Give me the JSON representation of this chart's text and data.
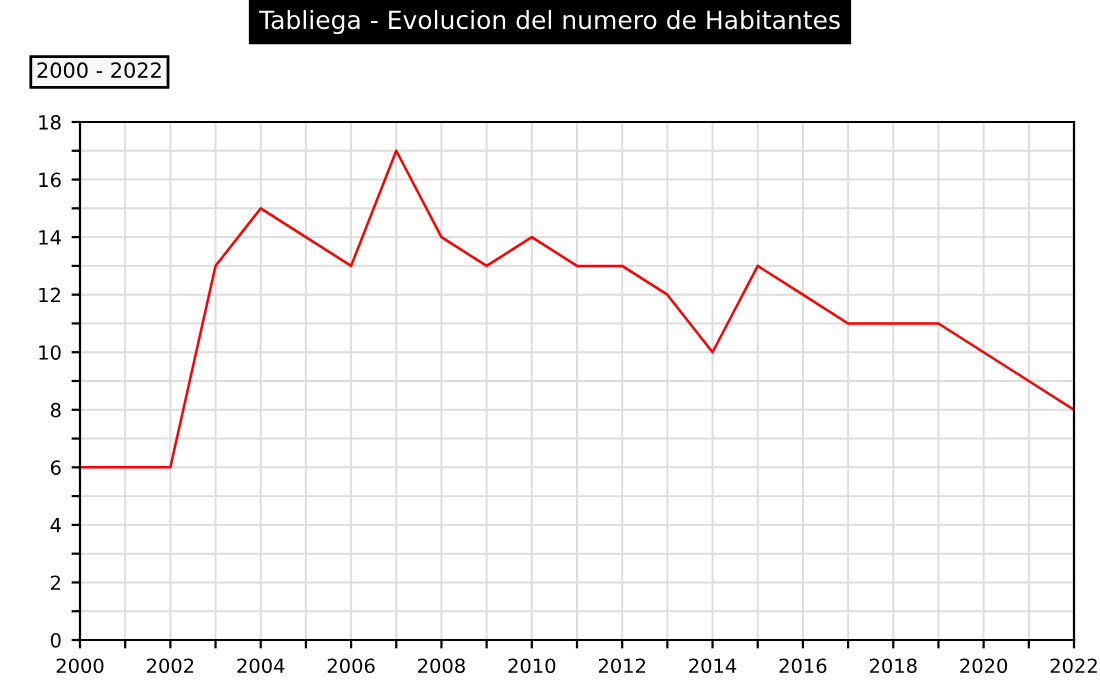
{
  "chart_data": {
    "type": "line",
    "title": "Tabliega - Evolucion del numero de Habitantes",
    "annotations": [
      "2000 - 2022"
    ],
    "x": [
      2000,
      2001,
      2002,
      2003,
      2004,
      2005,
      2006,
      2007,
      2008,
      2009,
      2010,
      2011,
      2012,
      2013,
      2014,
      2015,
      2016,
      2017,
      2018,
      2019,
      2020,
      2021,
      2022
    ],
    "series": [
      {
        "color": "#ff0000",
        "values": [
          6,
          6,
          6,
          13,
          15,
          14,
          13,
          17,
          14,
          13,
          14,
          13,
          13,
          12,
          10,
          13,
          12,
          11,
          11,
          11,
          10,
          9,
          8
        ]
      }
    ],
    "xlim": [
      2000,
      2022
    ],
    "xticks": [
      2000,
      {
        "value": 2001,
        "label": null
      },
      2002,
      {
        "value": 2003,
        "label": null
      },
      2004,
      {
        "value": 2005,
        "label": null
      },
      2006,
      {
        "value": 2007,
        "label": null
      },
      2008,
      {
        "value": 2009,
        "label": null
      },
      2010,
      {
        "value": 2011,
        "label": null
      },
      2012,
      {
        "value": 2013,
        "label": null
      },
      2014,
      {
        "value": 2015,
        "label": null
      },
      2016,
      {
        "value": 2017,
        "label": null
      },
      2018,
      {
        "value": 2019,
        "label": null
      },
      2020,
      {
        "value": 2021,
        "label": null
      },
      2022
    ],
    "ylim": [
      0,
      18
    ],
    "yticks": [
      0,
      {
        "value": 1,
        "label": null
      },
      2,
      {
        "value": 3,
        "label": null
      },
      4,
      {
        "value": 5,
        "label": null
      },
      6,
      {
        "value": 7,
        "label": null
      },
      8,
      {
        "value": 9,
        "label": null
      },
      10,
      {
        "value": 11,
        "label": null
      },
      12,
      {
        "value": 13,
        "label": null
      },
      14,
      {
        "value": 15,
        "label": null
      },
      16,
      {
        "value": 17,
        "label": null
      },
      18
    ],
    "grid": true,
    "marker": "none",
    "line_style": "solid"
  }
}
